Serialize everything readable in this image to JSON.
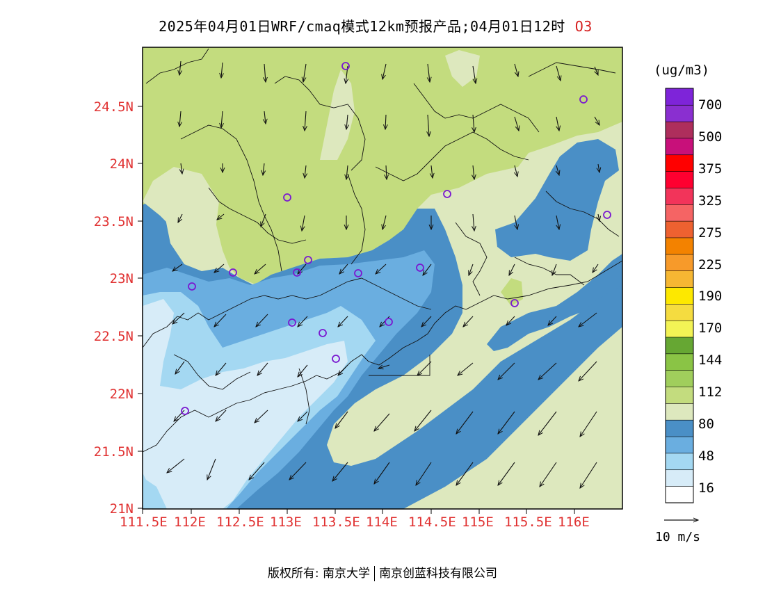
{
  "title": {
    "main": "2025年04月01日WRF/cmaq模式12km预报产品;04月01日12时",
    "species": "O3"
  },
  "axes": {
    "y_labels": [
      "24.5N",
      "24N",
      "23.5N",
      "23N",
      "22.5N",
      "22N",
      "21.5N",
      "21N"
    ],
    "x_labels": [
      "111.5E",
      "112E",
      "112.5E",
      "113E",
      "113.5E",
      "114E",
      "114.5E",
      "115E",
      "115.5E",
      "116E"
    ]
  },
  "colorbar": {
    "unit": "(ug/m3)",
    "labels": [
      "700",
      "500",
      "375",
      "325",
      "275",
      "225",
      "190",
      "170",
      "144",
      "112",
      "80",
      "48",
      "16"
    ],
    "colors": [
      "#ffffff",
      "#d7ecf8",
      "#a4d8f2",
      "#6aaee0",
      "#4a8fc6",
      "#dde8be",
      "#c3dc7e",
      "#a0ce5c",
      "#8ac445",
      "#66a733",
      "#f3f355",
      "#f5dc40",
      "#fde800",
      "#f6b733",
      "#f79a2a",
      "#f38200",
      "#ee6130",
      "#f56464",
      "#f2345a",
      "#ff0030",
      "#ff0000",
      "#c8107a",
      "#ae2e5c",
      "#8a2fd0",
      "#7e24d9"
    ]
  },
  "wind_reference": {
    "label": "10 m/s"
  },
  "copyright": {
    "left": "版权所有: 南京大学",
    "right": "南京创蓝科技有限公司"
  }
}
